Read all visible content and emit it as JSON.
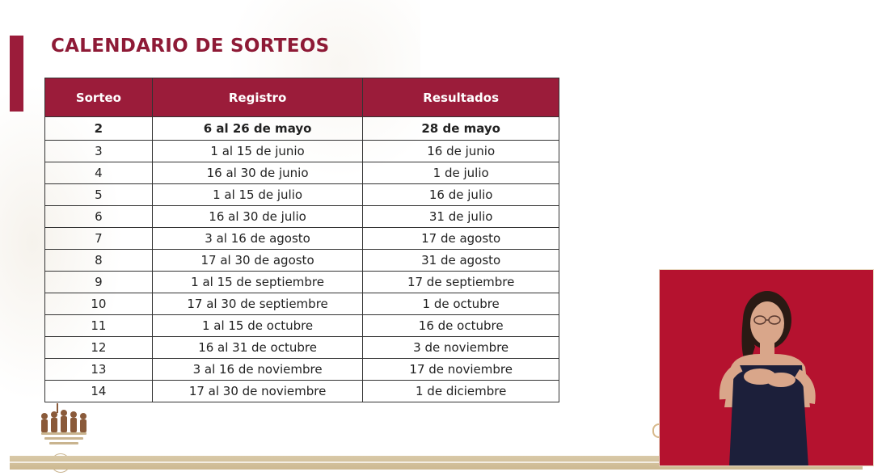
{
  "title": "CALENDARIO DE SORTEOS",
  "table": {
    "headers": [
      "Sorteo",
      "Registro",
      "Resultados"
    ],
    "rows": [
      [
        "2",
        "6 al 26 de mayo",
        "28 de mayo"
      ],
      [
        "3",
        "1 al 15 de junio",
        "16 de junio"
      ],
      [
        "4",
        "16 al 30 de junio",
        "1 de julio"
      ],
      [
        "5",
        "1 al 15 de julio",
        "16 de julio"
      ],
      [
        "6",
        "16 al 30 de julio",
        "31 de julio"
      ],
      [
        "7",
        "3 al 16 de agosto",
        "17 de agosto"
      ],
      [
        "8",
        "17 al 30 de agosto",
        "31 de agosto"
      ],
      [
        "9",
        "1 al 15 de septiembre",
        "17 de septiembre"
      ],
      [
        "10",
        "17 al 30 de septiembre",
        "1 de octubre"
      ],
      [
        "11",
        "1 al 15 de octubre",
        "16 de octubre"
      ],
      [
        "12",
        "16 al 31 de octubre",
        "3 de noviembre"
      ],
      [
        "13",
        "3 al 16 de noviembre",
        "17 de noviembre"
      ],
      [
        "14",
        "17 al 30 de noviembre",
        "1 de diciembre"
      ]
    ]
  },
  "colors": {
    "accent": "#9b1c3a",
    "title": "#8e1a36",
    "interpreter_bg": "#b5122f",
    "gold": "#d9c9a8"
  },
  "icons": {
    "logo": "heroes-logo-icon",
    "seal": "seal-icon"
  }
}
